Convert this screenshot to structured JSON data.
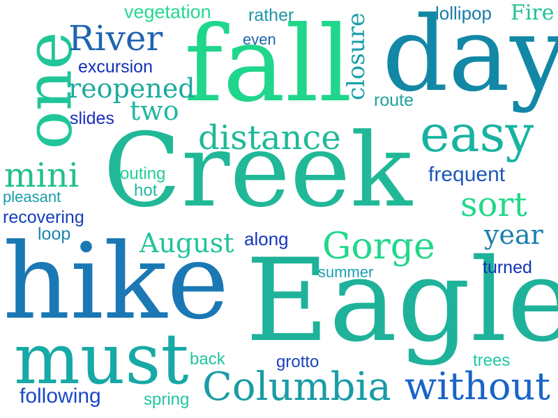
{
  "words": [
    {
      "text": "Creek",
      "color": "#20b896"
    },
    {
      "text": "Eagle",
      "color": "#1fb29a"
    },
    {
      "text": "hike",
      "color": "#1a78b4"
    },
    {
      "text": "fall",
      "color": "#1fd68a"
    },
    {
      "text": "day",
      "color": "#1288a6"
    },
    {
      "text": "one",
      "color": "#20c698"
    },
    {
      "text": "must",
      "color": "#17a9a6"
    },
    {
      "text": "easy",
      "color": "#18b3a0"
    },
    {
      "text": "Columbia",
      "color": "#199ca6"
    },
    {
      "text": "without",
      "color": "#1a64c8"
    },
    {
      "text": "distance",
      "color": "#1eb998"
    },
    {
      "text": "Gorge",
      "color": "#22d78b"
    },
    {
      "text": "River",
      "color": "#1f64b0"
    },
    {
      "text": "mini",
      "color": "#20c08c"
    },
    {
      "text": "sort",
      "color": "#22d98b"
    },
    {
      "text": "August",
      "color": "#21c39a"
    },
    {
      "text": "reopened",
      "color": "#1eaa9c"
    },
    {
      "text": "two",
      "color": "#22b6a2"
    },
    {
      "text": "closure",
      "color": "#1ba0a8"
    },
    {
      "text": "year",
      "color": "#1b7eae"
    },
    {
      "text": "frequent",
      "color": "#1d57b8"
    },
    {
      "text": "vegetation",
      "color": "#25d98f"
    },
    {
      "text": "rather",
      "color": "#1e96a6"
    },
    {
      "text": "lollipop",
      "color": "#1a7ca8"
    },
    {
      "text": "Fire",
      "color": "#20c092"
    },
    {
      "text": "even",
      "color": "#1b64ae"
    },
    {
      "text": "excursion",
      "color": "#1230b8"
    },
    {
      "text": "slides",
      "color": "#1a2cc2"
    },
    {
      "text": "route",
      "color": "#1ea2a0"
    },
    {
      "text": "outing",
      "color": "#22cf98"
    },
    {
      "text": "hot",
      "color": "#1fb9a0"
    },
    {
      "text": "pleasant",
      "color": "#199ca8"
    },
    {
      "text": "recovering",
      "color": "#1540b8"
    },
    {
      "text": "loop",
      "color": "#1c84b0"
    },
    {
      "text": "along",
      "color": "#1538c0"
    },
    {
      "text": "summer",
      "color": "#18a2b0"
    },
    {
      "text": "turned",
      "color": "#1232b4"
    },
    {
      "text": "back",
      "color": "#20c49a"
    },
    {
      "text": "grotto",
      "color": "#1a44b8"
    },
    {
      "text": "trees",
      "color": "#22c9a2"
    },
    {
      "text": "following",
      "color": "#1a48c6"
    },
    {
      "text": "spring",
      "color": "#22c6a2"
    }
  ]
}
